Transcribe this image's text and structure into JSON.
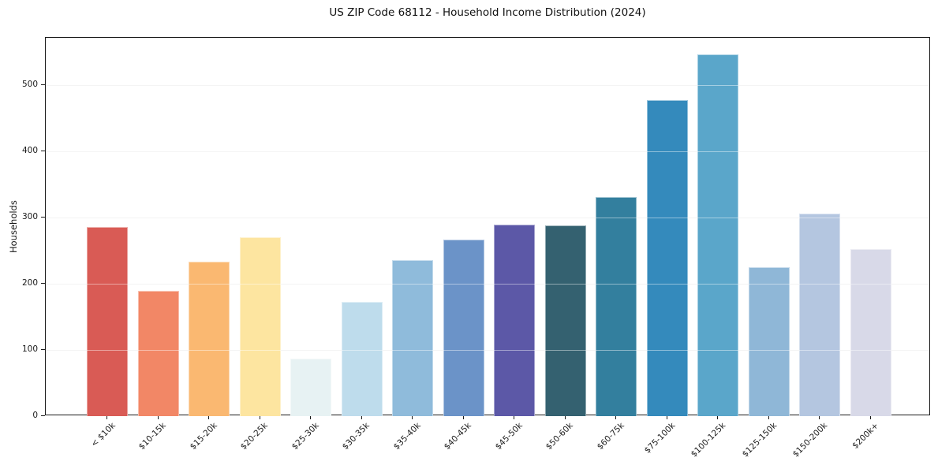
{
  "chart_data": {
    "type": "bar",
    "title": "US ZIP Code 68112 - Household Income Distribution (2024)",
    "xlabel": "",
    "ylabel": "Households",
    "categories": [
      "< $10k",
      "$10-15k",
      "$15-20k",
      "$20-25k",
      "$25-30k",
      "$30-35k",
      "$35-40k",
      "$40-45k",
      "$45-50k",
      "$50-60k",
      "$60-75k",
      "$75-100k",
      "$100-125k",
      "$125-150k",
      "$150-200k",
      "$200k+"
    ],
    "values": [
      286,
      189,
      234,
      270,
      87,
      173,
      236,
      267,
      290,
      288,
      331,
      478,
      547,
      225,
      306,
      253
    ],
    "bar_colors": [
      "#d95b55",
      "#f28766",
      "#fab871",
      "#fde5a0",
      "#e7f2f3",
      "#bedcec",
      "#8fbbdb",
      "#6b93c8",
      "#5c58a7",
      "#346170",
      "#337f9e",
      "#348abc",
      "#5aa6ca",
      "#8fb7d7",
      "#b4c6e0",
      "#d8d9e8"
    ],
    "yticks": [
      0,
      100,
      200,
      300,
      400,
      500
    ],
    "ylim": [
      0,
      572
    ],
    "grid": "horizontal",
    "legend": "none",
    "x_tick_rotation_deg": 45,
    "spine_color": "#1a1a1a",
    "gridline_color": "#ececec",
    "background_color": "#ffffff"
  }
}
